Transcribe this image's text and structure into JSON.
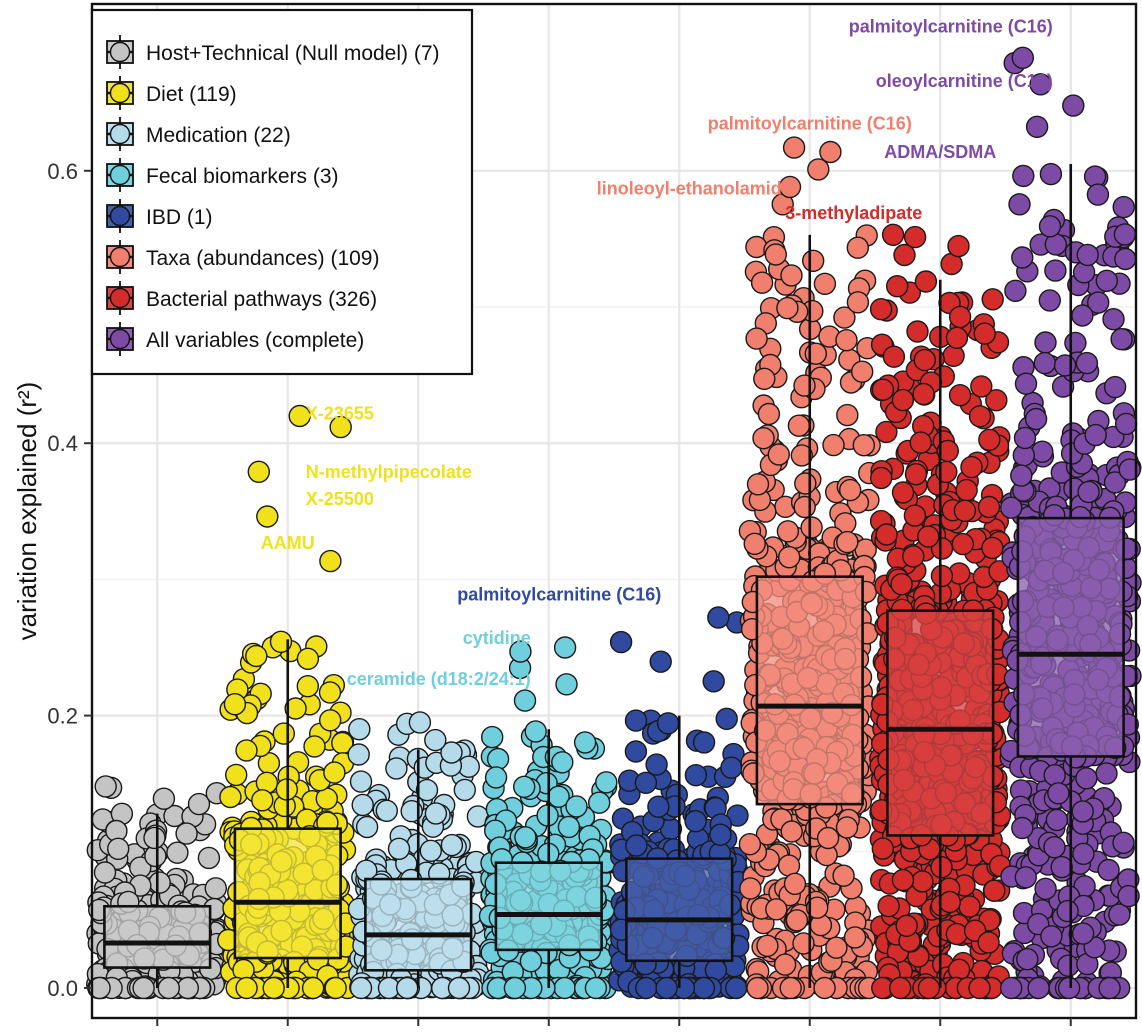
{
  "chart_data": {
    "type": "box-jitter",
    "title": "",
    "xlabel": "",
    "ylabel": "variation explained (r²)",
    "ylim": [
      0,
      0.7
    ],
    "yticks": [
      0.0,
      0.2,
      0.4,
      0.6
    ],
    "ytick_labels": [
      "0.0",
      "0.2",
      "0.4",
      "0.6"
    ],
    "grid": true,
    "legend_position": "top-left",
    "series": [
      {
        "name": "Host+Technical (Null model) (7)",
        "color": "#c4c4c4",
        "whisker_low": 0.0,
        "q1": 0.015,
        "median": 0.033,
        "q3": 0.06,
        "whisker_high": 0.128,
        "max_point": 0.148,
        "n_points": 320
      },
      {
        "name": "Diet (119)",
        "color": "#f1e11d",
        "whisker_low": 0.0,
        "q1": 0.022,
        "median": 0.063,
        "q3": 0.117,
        "whisker_high": 0.256,
        "max_point": 0.42,
        "n_points": 330
      },
      {
        "name": "Medication (22)",
        "color": "#b5dbea",
        "whisker_low": 0.0,
        "q1": 0.013,
        "median": 0.039,
        "q3": 0.08,
        "whisker_high": 0.175,
        "max_point": 0.195,
        "n_points": 300
      },
      {
        "name": "Fecal biomarkers (3)",
        "color": "#6fcfdc",
        "whisker_low": 0.0,
        "q1": 0.028,
        "median": 0.054,
        "q3": 0.092,
        "whisker_high": 0.19,
        "max_point": 0.25,
        "n_points": 320
      },
      {
        "name": "IBD (1)",
        "color": "#2f4a9e",
        "whisker_low": 0.0,
        "q1": 0.02,
        "median": 0.05,
        "q3": 0.095,
        "whisker_high": 0.2,
        "max_point": 0.272,
        "n_points": 320
      },
      {
        "name": "Taxa (abundances) (109)",
        "color": "#f07f6e",
        "whisker_low": 0.0,
        "q1": 0.135,
        "median": 0.207,
        "q3": 0.302,
        "whisker_high": 0.553,
        "max_point": 0.617,
        "n_points": 560
      },
      {
        "name": "Bacterial pathways (326)",
        "color": "#d42b2b",
        "whisker_low": 0.0,
        "q1": 0.112,
        "median": 0.19,
        "q3": 0.277,
        "whisker_high": 0.52,
        "max_point": 0.553,
        "n_points": 700
      },
      {
        "name": "All variables (complete)",
        "color": "#7d4ba6",
        "whisker_low": 0.0,
        "q1": 0.17,
        "median": 0.245,
        "q3": 0.345,
        "whisker_high": 0.605,
        "max_point": 0.683,
        "n_points": 560
      }
    ],
    "annotations": [
      {
        "text": "X-23655",
        "group": 1,
        "y": 0.421,
        "color": "#f1e11d",
        "anchor": "start"
      },
      {
        "text": "N-methylpipecolate",
        "group": 1,
        "y": 0.378,
        "color": "#f1e11d",
        "anchor": "start"
      },
      {
        "text": "X-25500",
        "group": 1,
        "y": 0.358,
        "color": "#f1e11d",
        "anchor": "start"
      },
      {
        "text": "AAMU",
        "group": 1,
        "y": 0.326,
        "color": "#f1e11d",
        "anchor": "middle"
      },
      {
        "text": "palmitoylcarnitine (C16)",
        "group": 4,
        "y": 0.288,
        "color": "#2f4a9e",
        "anchor": "end"
      },
      {
        "text": "cytidine",
        "group": 3,
        "y": 0.256,
        "color": "#6fcfdc",
        "anchor": "end"
      },
      {
        "text": "ceramide (d18:2/24:1)",
        "group": 3,
        "y": 0.226,
        "color": "#6fcfdc",
        "anchor": "end"
      },
      {
        "text": "palmitoylcarnitine (C16)",
        "group": 5,
        "y": 0.634,
        "color": "#f07f6e",
        "anchor": "middle"
      },
      {
        "text": "linoleoyl-ethanolamide",
        "group": 5,
        "y": 0.586,
        "color": "#f07f6e",
        "anchor": "end"
      },
      {
        "text": "ADMA/SDMA",
        "group": 6,
        "y": 0.613,
        "color": "#7d4ba6",
        "anchor": "middle"
      },
      {
        "text": "3-methyladipate",
        "group": 6,
        "y": 0.568,
        "color": "#d42b2b",
        "anchor": "end"
      },
      {
        "text": "palmitoylcarnitine (C16)",
        "group": 7,
        "y": 0.705,
        "color": "#7d4ba6",
        "anchor": "end"
      },
      {
        "text": "oleoylcarnitine (C18)",
        "group": 7,
        "y": 0.665,
        "color": "#7d4ba6",
        "anchor": "end"
      }
    ]
  }
}
